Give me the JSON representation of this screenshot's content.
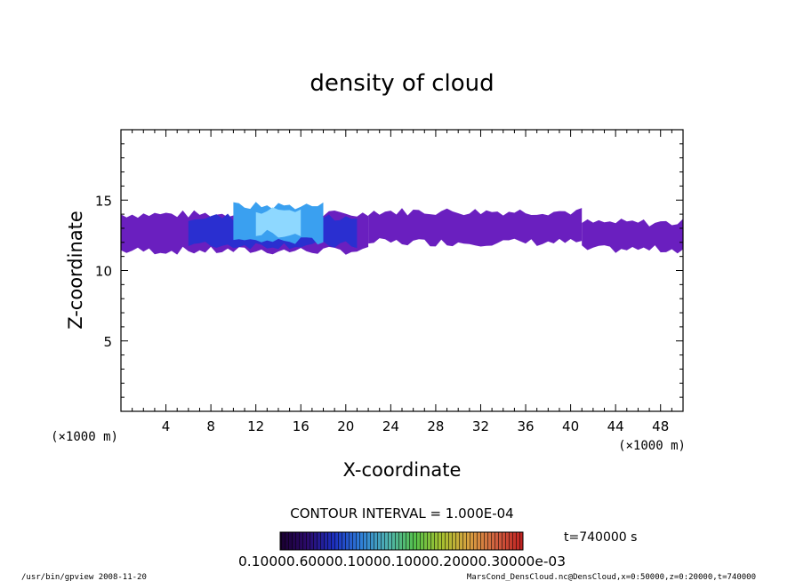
{
  "chart_data": {
    "type": "heatmap",
    "title": "density of cloud",
    "xlabel": "X-coordinate",
    "ylabel": "Z-coordinate",
    "x_unit_left": "(×1000 m)",
    "x_unit_right": "(×1000 m)",
    "xlim": [
      0,
      50
    ],
    "ylim": [
      0,
      20
    ],
    "xticks": [
      4,
      8,
      12,
      16,
      20,
      24,
      28,
      32,
      36,
      40,
      44,
      48
    ],
    "yticks": [
      5,
      10,
      15
    ],
    "grid": false,
    "contour_interval": "CONTOUR INTERVAL = 1.000E-04",
    "time_label": "t=740000 s",
    "colorbar_labels": "0.10000.60000.10000.10000.20000.30000e-03",
    "colorbar_stops": [
      "#1a0030",
      "#2b0a6a",
      "#1c2fbf",
      "#2f7fd8",
      "#4fb3b0",
      "#55c04a",
      "#a8c030",
      "#d8a040",
      "#d06040",
      "#c02020"
    ],
    "field_colors": {
      "low": "#6a1fbf",
      "mid": "#2a2fd0",
      "high": "#3aa0f0",
      "peak": "#8ed8ff"
    },
    "cloud_bands": [
      {
        "x": [
          0,
          22
        ],
        "z_low": 11.4,
        "z_high": 14.0,
        "level": "low"
      },
      {
        "x": [
          6,
          21
        ],
        "z_low": 11.8,
        "z_high": 13.8,
        "level": "mid"
      },
      {
        "x": [
          10,
          18
        ],
        "z_low": 12.1,
        "z_high": 14.6,
        "level": "high"
      },
      {
        "x": [
          12,
          16
        ],
        "z_low": 12.6,
        "z_high": 14.3,
        "level": "peak"
      },
      {
        "x": [
          22,
          41
        ],
        "z_low": 12.0,
        "z_high": 14.2,
        "level": "low"
      },
      {
        "x": [
          41,
          50
        ],
        "z_low": 11.5,
        "z_high": 13.4,
        "level": "low"
      }
    ]
  },
  "footer": {
    "left": "/usr/bin/gpview   2008-11-20",
    "right": "MarsCond_DensCloud.nc@DensCloud,x=0:50000,z=0:20000,t=740000"
  }
}
